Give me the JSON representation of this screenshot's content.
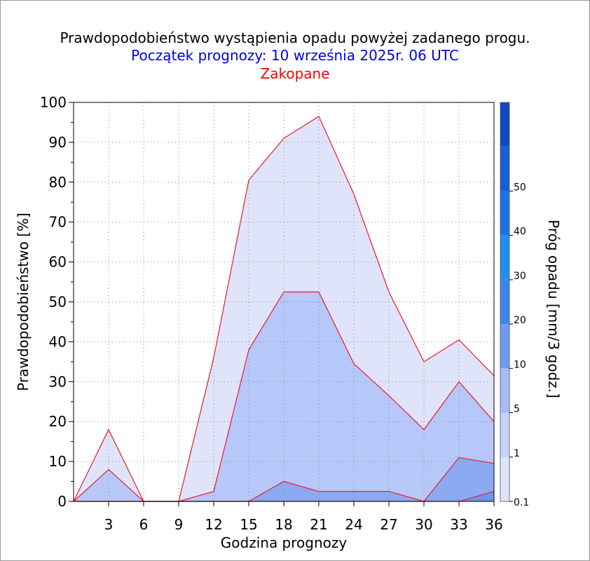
{
  "header": {
    "title": "Prawdopodobieństwo wystąpienia opadu powyżej zadanego progu.",
    "subtitle": "Początek prognozy: 10 września 2025r. 06 UTC",
    "location": "Zakopane"
  },
  "chart_data": {
    "type": "area",
    "xlabel": "Godzina prognozy",
    "ylabel": "Prawdopodobieństwo [%]",
    "x": [
      0,
      3,
      6,
      9,
      12,
      15,
      18,
      21,
      24,
      27,
      30,
      33,
      36
    ],
    "x_ticks": [
      "3",
      "6",
      "9",
      "12",
      "15",
      "18",
      "21",
      "24",
      "27",
      "30",
      "33",
      "36"
    ],
    "xlim": [
      0,
      36
    ],
    "ylim": [
      0,
      100
    ],
    "y_ticks": [
      "0",
      "10",
      "20",
      "30",
      "40",
      "50",
      "60",
      "70",
      "80",
      "90",
      "100"
    ],
    "grid": true,
    "series": [
      {
        "threshold": 0.1,
        "color": "#dfe4fa",
        "values": [
          0,
          18,
          0,
          0,
          36,
          80.5,
          91,
          96.5,
          77,
          52.5,
          35,
          40.5,
          31.5
        ]
      },
      {
        "threshold": 1,
        "color": "#b6c7fa",
        "values": [
          0,
          8,
          0,
          0,
          2.5,
          38,
          52.5,
          52.5,
          34.5,
          26.5,
          18,
          30,
          20
        ]
      },
      {
        "threshold": 5,
        "color": "#8aaaf4",
        "values": [
          0,
          0,
          0,
          0,
          0,
          0,
          5,
          2.5,
          2.5,
          2.5,
          0,
          11,
          9.5
        ]
      },
      {
        "threshold": 10,
        "color": "#6b95f0",
        "values": [
          0,
          0,
          0,
          0,
          0,
          0,
          0,
          0,
          0,
          0,
          0,
          0,
          2.5
        ]
      }
    ],
    "colorbar": {
      "label": "Próg opadu [mm/3 godz.]",
      "levels": [
        "0.1",
        "1",
        "5",
        "10",
        "20",
        "30",
        "40",
        "50"
      ],
      "colors": [
        "#dfe4fa",
        "#c6d3fa",
        "#a6bbf7",
        "#6f9af2",
        "#3b86ef",
        "#1f8ff0",
        "#1c72e8",
        "#1560d8",
        "#0f47c4"
      ]
    },
    "line_color": "#e8283c"
  }
}
